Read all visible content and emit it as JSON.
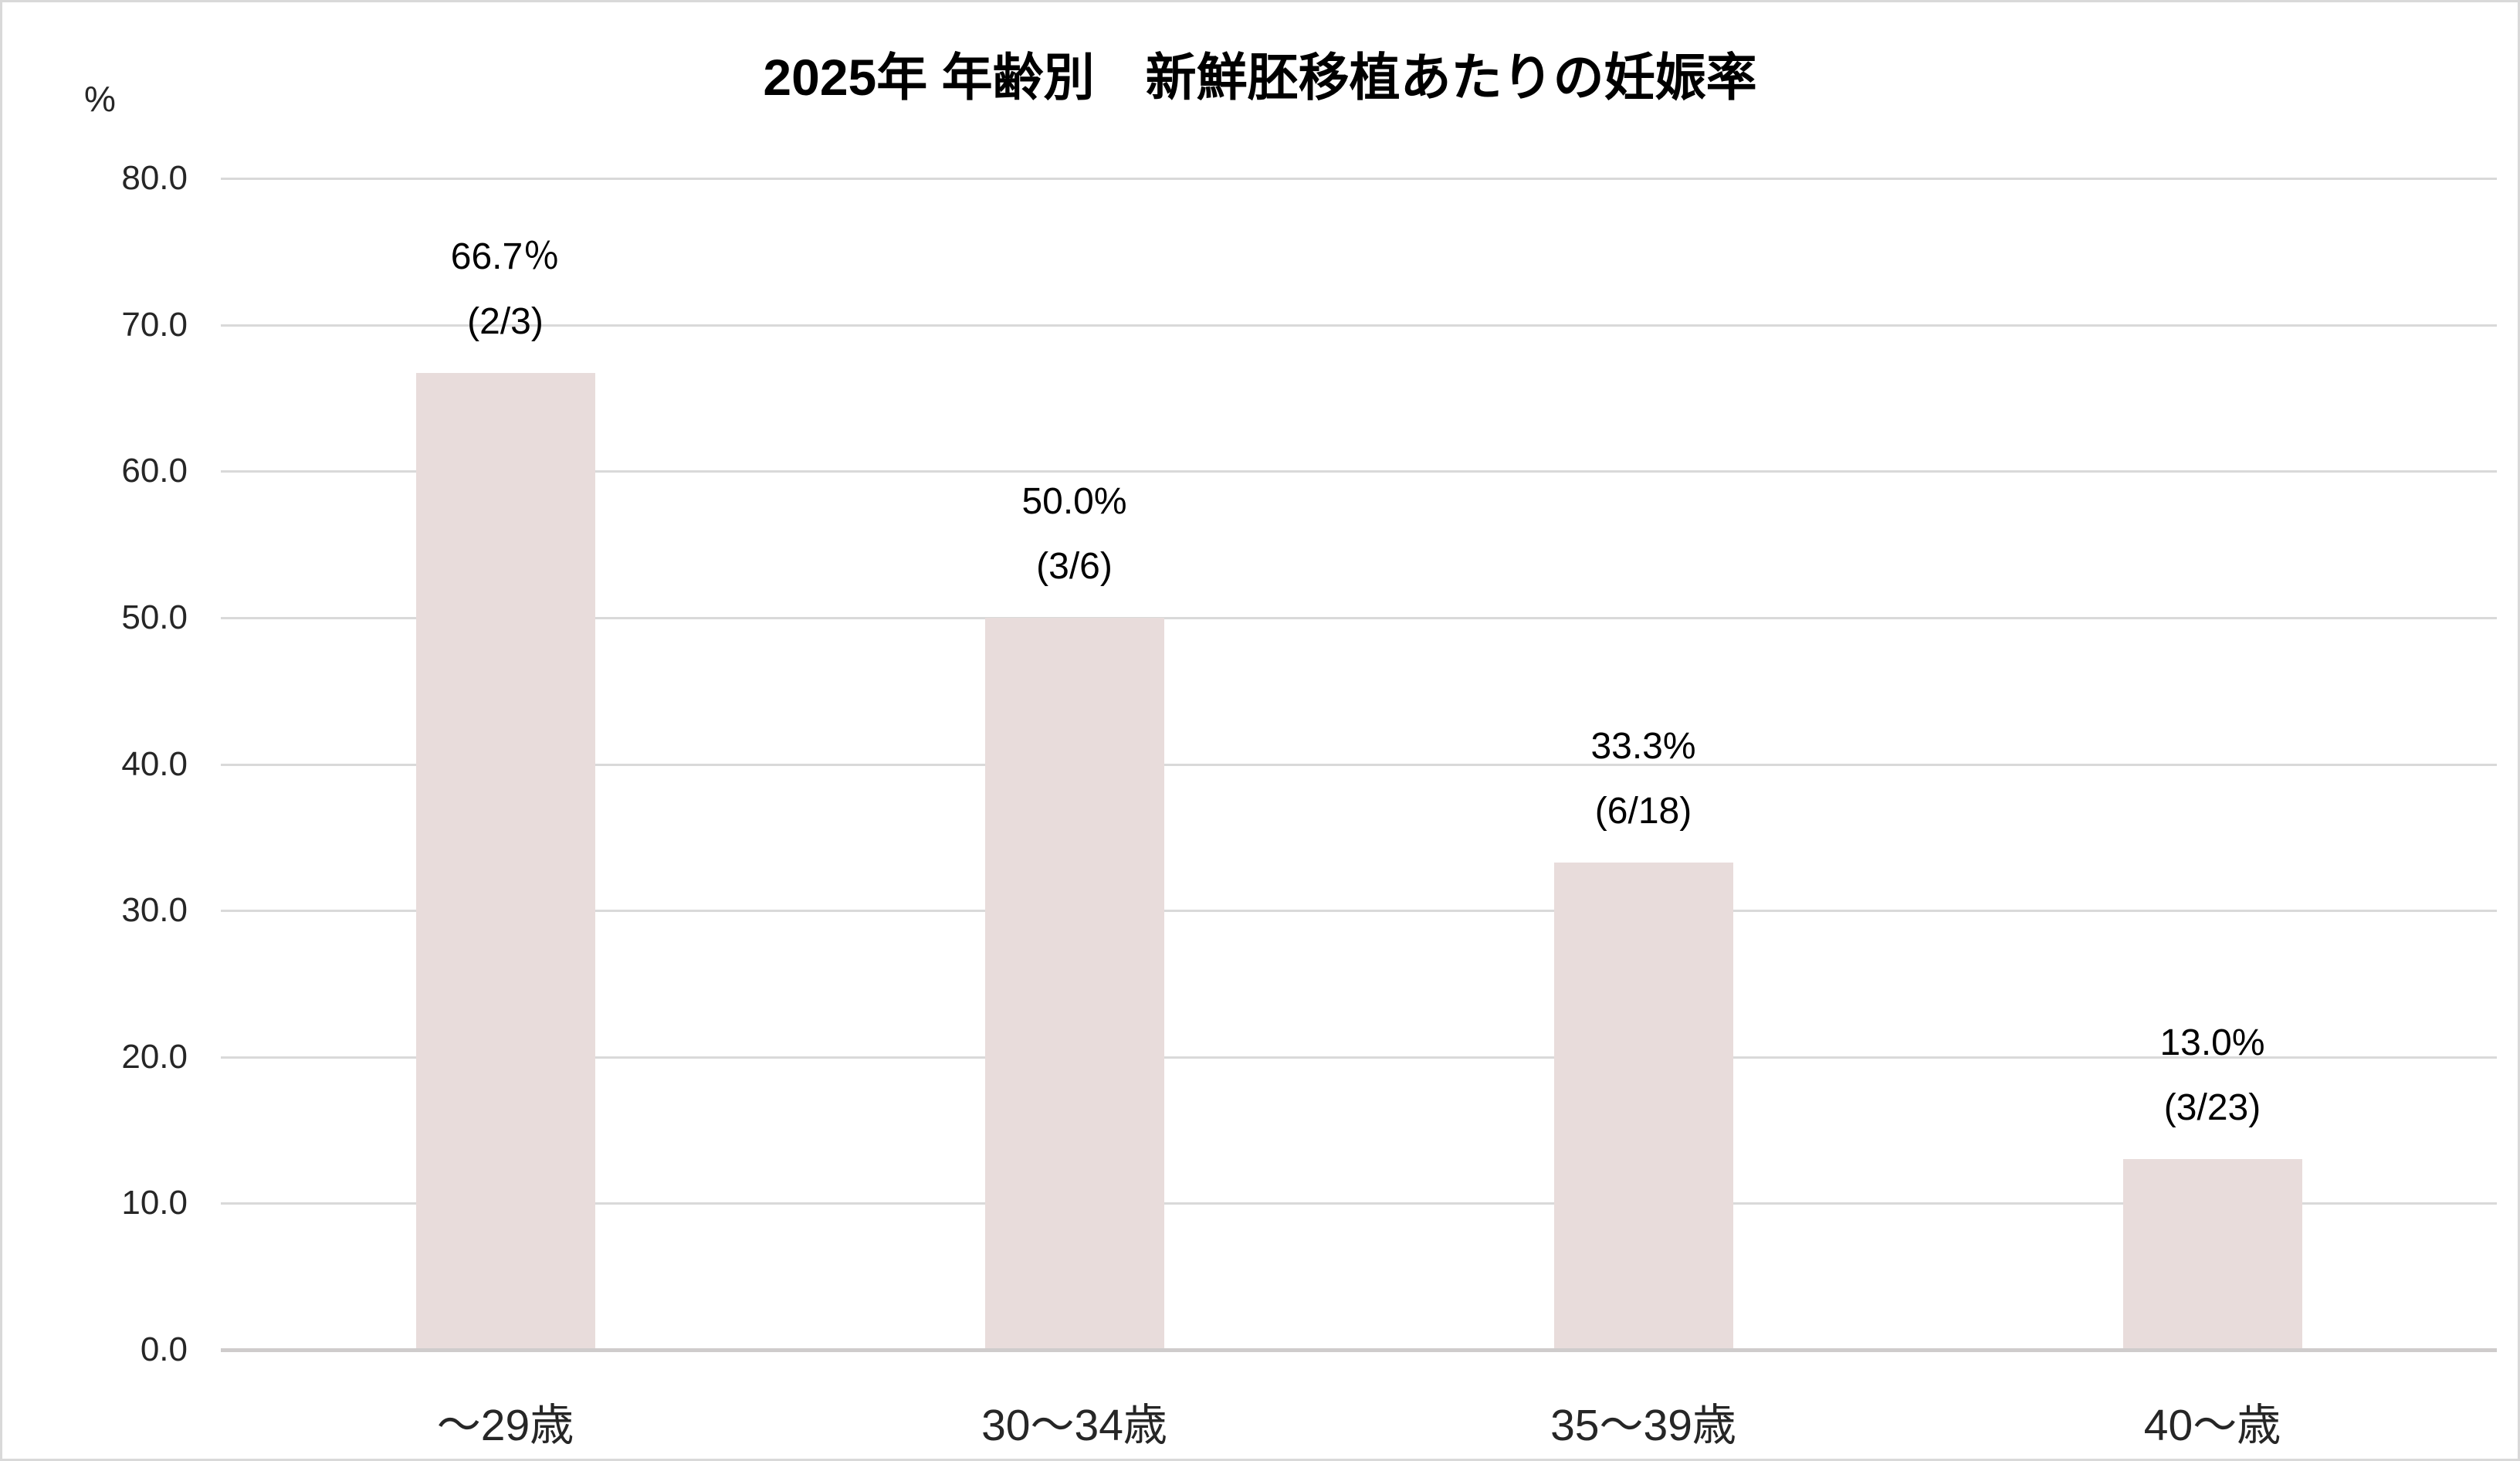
{
  "page": {
    "background": "#ffffff",
    "border_color": "#d9d9d9"
  },
  "chart_data": {
    "type": "bar",
    "title": "2025年 年齢別　新鮮胚移植あたりの妊娠率",
    "y_unit_label": "%",
    "xlabel": "",
    "ylabel": "%",
    "categories": [
      "～29歳",
      "30～34歳",
      "35～39歳",
      "40～歳"
    ],
    "values": [
      66.7,
      50.0,
      33.3,
      13.0
    ],
    "data_labels": [
      {
        "percent": "66.7％",
        "fraction": "(2/3)"
      },
      {
        "percent": "50.0%",
        "fraction": "(3/6)"
      },
      {
        "percent": "33.3%",
        "fraction": "(6/18)"
      },
      {
        "percent": "13.0%",
        "fraction": "(3/23)"
      }
    ],
    "ylim": [
      0,
      80
    ],
    "ytick_interval": 10,
    "ytick_labels": [
      "0.0",
      "10.0",
      "20.0",
      "30.0",
      "40.0",
      "50.0",
      "60.0",
      "70.0",
      "80.0"
    ],
    "grid": true,
    "legend": "none",
    "colors": {
      "bar": "#e8dcdb",
      "gridline": "#d9d9d9",
      "axis_line": "#cfcccc",
      "title_text": "#000000",
      "label_text": "#262626"
    }
  }
}
